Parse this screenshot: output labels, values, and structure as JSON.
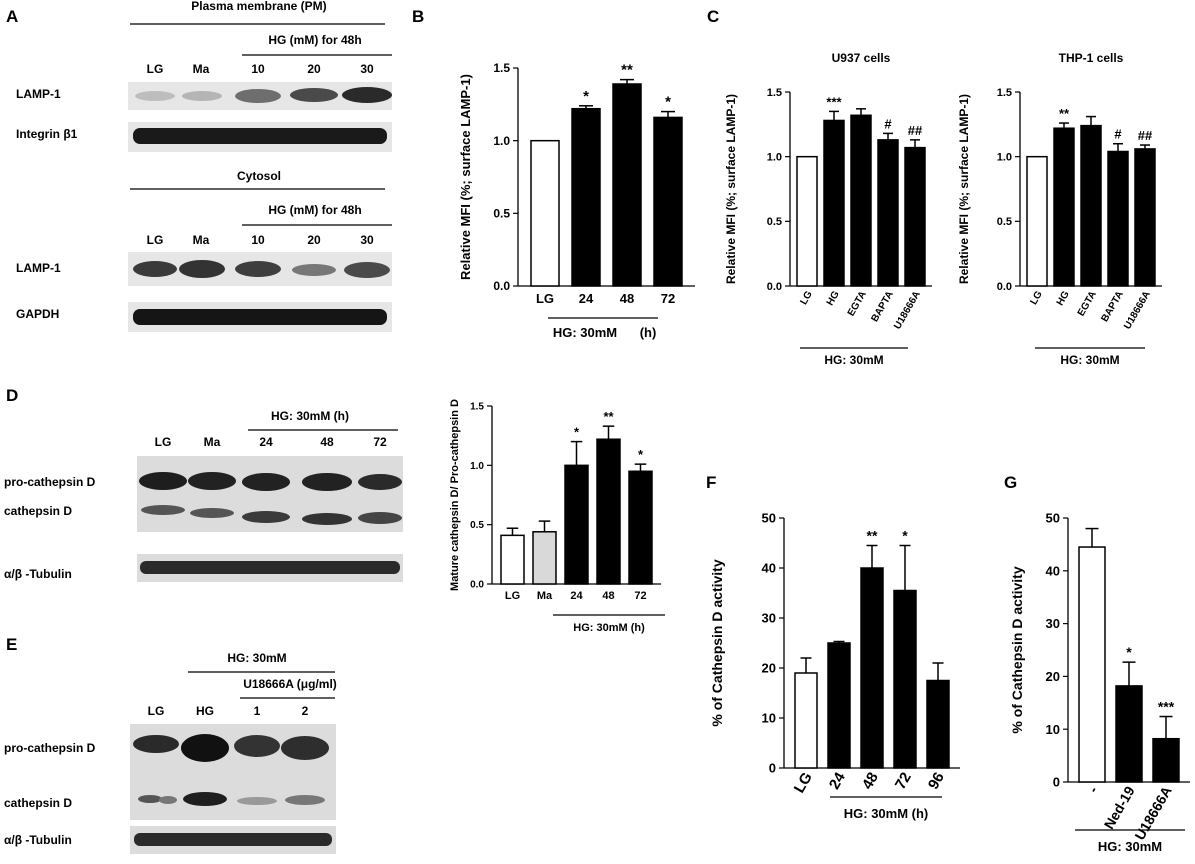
{
  "panelA": {
    "letter": "A",
    "pm_title": "Plasma membrane (PM)",
    "hg_header": "HG (mM) for 48h",
    "lanes": [
      "LG",
      "Ma",
      "10",
      "20",
      "30"
    ],
    "pm_rows": [
      "LAMP-1",
      "Integrin β1"
    ],
    "cyto_title": "Cytosol",
    "cyto_rows": [
      "LAMP-1",
      "GAPDH"
    ]
  },
  "panelB": {
    "letter": "B",
    "hg_label": "HG: 30mM",
    "h_label": "(h)"
  },
  "panelC": {
    "letter": "C",
    "hg_label": "HG: 30mM"
  },
  "panelD": {
    "letter": "D",
    "hg_header": "HG: 30mM (h)",
    "lanes": [
      "LG",
      "Ma",
      "24",
      "48",
      "72"
    ],
    "rows": [
      "pro-cathepsin D",
      "cathepsin D",
      "α/β -Tubulin"
    ],
    "hg_label": "HG: 30mM (h)"
  },
  "panelE": {
    "letter": "E",
    "hg_header": "HG: 30mM",
    "u_header": "U18666A (μg/ml)",
    "lanes": [
      "LG",
      "HG",
      "1",
      "2"
    ],
    "rows": [
      "pro-cathepsin D",
      "cathepsin D",
      "α/β -Tubulin"
    ]
  },
  "panelF": {
    "letter": "F",
    "hg_label": "HG: 30mM (h)"
  },
  "panelG": {
    "letter": "G",
    "hg_label": "HG: 30mM"
  },
  "chart_data": [
    {
      "id": "B",
      "type": "bar",
      "categories": [
        "LG",
        "24",
        "48",
        "72"
      ],
      "values": [
        1.0,
        1.22,
        1.39,
        1.16
      ],
      "errors": [
        0.0,
        0.02,
        0.03,
        0.04
      ],
      "stars": [
        "",
        "*",
        "**",
        "*"
      ],
      "fills": [
        "#ffffff",
        "#000000",
        "#000000",
        "#000000"
      ],
      "ylabel": "Relative MFI (%; surface LAMP-1)",
      "ylim": [
        0,
        1.5
      ],
      "yticks": [
        "0.0",
        "0.5",
        "1.0",
        "1.5"
      ]
    },
    {
      "id": "C1",
      "type": "bar",
      "title": "U937 cells",
      "categories": [
        "LG",
        "HG",
        "EGTA",
        "BAPTA",
        "U18666A"
      ],
      "values": [
        1.0,
        1.28,
        1.32,
        1.13,
        1.07
      ],
      "errors": [
        0.0,
        0.07,
        0.05,
        0.05,
        0.06
      ],
      "stars": [
        "",
        "***",
        "",
        "#",
        "##"
      ],
      "fills": [
        "#ffffff",
        "#000000",
        "#000000",
        "#000000",
        "#000000"
      ],
      "ylabel": "Relative MFI (%; surface LAMP-1)",
      "ylim": [
        0,
        1.5
      ],
      "yticks": [
        "0.0",
        "0.5",
        "1.0",
        "1.5"
      ]
    },
    {
      "id": "C2",
      "type": "bar",
      "title": "THP-1 cells",
      "categories": [
        "LG",
        "HG",
        "EGTA",
        "BAPTA",
        "U18666A"
      ],
      "values": [
        1.0,
        1.22,
        1.24,
        1.04,
        1.06
      ],
      "errors": [
        0.0,
        0.04,
        0.07,
        0.06,
        0.03
      ],
      "stars": [
        "",
        "**",
        "",
        "#",
        "##"
      ],
      "fills": [
        "#ffffff",
        "#000000",
        "#000000",
        "#000000",
        "#000000"
      ],
      "ylabel": "Relative MFI (%; surface LAMP-1)",
      "ylim": [
        0,
        1.5
      ],
      "yticks": [
        "0.0",
        "0.5",
        "1.0",
        "1.5"
      ]
    },
    {
      "id": "D",
      "type": "bar",
      "categories": [
        "LG",
        "Ma",
        "24",
        "48",
        "72"
      ],
      "values": [
        0.41,
        0.44,
        1.0,
        1.22,
        0.95
      ],
      "errors": [
        0.06,
        0.09,
        0.2,
        0.11,
        0.06
      ],
      "stars": [
        "",
        "",
        "*",
        "**",
        "*"
      ],
      "fills": [
        "#ffffff",
        "#d9d9d9",
        "#000000",
        "#000000",
        "#000000"
      ],
      "ylabel": "Mature cathepsin D/ Pro-cathepsin D",
      "ylim": [
        0,
        1.5
      ],
      "yticks": [
        "0.0",
        "0.5",
        "1.0",
        "1.5"
      ]
    },
    {
      "id": "F",
      "type": "bar",
      "categories": [
        "LG",
        "24",
        "48",
        "72",
        "96"
      ],
      "values": [
        19,
        25,
        40,
        35.5,
        17.5
      ],
      "errors": [
        3,
        0.3,
        4.5,
        9,
        3.5
      ],
      "stars": [
        "",
        "",
        "**",
        "*",
        ""
      ],
      "fills": [
        "#ffffff",
        "#000000",
        "#000000",
        "#000000",
        "#000000"
      ],
      "ylabel": "% of Cathepsin D activity",
      "ylim": [
        0,
        50
      ],
      "yticks": [
        "0",
        "10",
        "20",
        "30",
        "40",
        "50"
      ]
    },
    {
      "id": "G",
      "type": "bar",
      "categories": [
        "-",
        "Ned-19",
        "U18666A"
      ],
      "values": [
        44.5,
        18.2,
        8.2
      ],
      "errors": [
        3.5,
        4.5,
        4.2
      ],
      "stars": [
        "",
        "*",
        "***"
      ],
      "fills": [
        "#ffffff",
        "#000000",
        "#000000"
      ],
      "ylabel": "% of Cathepsin D activity",
      "ylim": [
        0,
        50
      ],
      "yticks": [
        "0",
        "10",
        "20",
        "30",
        "40",
        "50"
      ]
    }
  ]
}
